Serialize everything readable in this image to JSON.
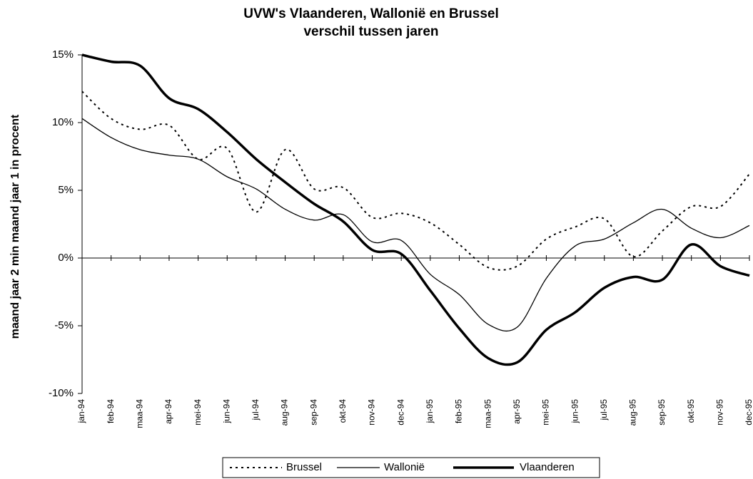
{
  "chart_data": {
    "type": "line",
    "title": "UVW's Vlaanderen, Wallonië en Brussel",
    "subtitle": "verschil tussen jaren",
    "y_label": "maand jaar 2 min maand jaar 1 in procent",
    "categories": [
      "jan-94",
      "feb-94",
      "maa-94",
      "apr-94",
      "mei-94",
      "jun-94",
      "jul-94",
      "aug-94",
      "sep-94",
      "okt-94",
      "nov-94",
      "dec-94",
      "jan-95",
      "feb-95",
      "maa-95",
      "apr-95",
      "mei-95",
      "jun-95",
      "jul-95",
      "aug-95",
      "sep-95",
      "okt-95",
      "nov-95",
      "dec-95"
    ],
    "series": [
      {
        "name": "Brussel",
        "color": "#000000",
        "line_style": "dotted",
        "line_width": 2,
        "values": [
          12.3,
          10.3,
          9.5,
          9.8,
          7.3,
          8.1,
          3.4,
          8.0,
          5.1,
          5.2,
          3.0,
          3.3,
          2.6,
          1.0,
          -0.7,
          -0.6,
          1.4,
          2.3,
          2.9,
          0.1,
          2.0,
          3.8,
          3.8,
          6.2
        ]
      },
      {
        "name": "Wallonië",
        "color": "#000000",
        "line_style": "solid",
        "line_width": 1.3,
        "values": [
          10.3,
          8.9,
          8.0,
          7.6,
          7.3,
          6.0,
          5.1,
          3.6,
          2.8,
          3.2,
          1.2,
          1.3,
          -1.2,
          -2.7,
          -4.9,
          -5.1,
          -1.5,
          0.9,
          1.4,
          2.6,
          3.6,
          2.2,
          1.5,
          2.4
        ]
      },
      {
        "name": "Vlaanderen",
        "color": "#000000",
        "line_style": "solid",
        "line_width": 3.5,
        "values": [
          15.0,
          14.5,
          14.2,
          11.8,
          11.0,
          9.3,
          7.3,
          5.6,
          4.0,
          2.7,
          0.6,
          0.3,
          -2.4,
          -5.2,
          -7.4,
          -7.7,
          -5.3,
          -4.0,
          -2.2,
          -1.4,
          -1.6,
          1.0,
          -0.6,
          -1.3
        ]
      }
    ],
    "ylim": [
      -10,
      15
    ],
    "yticks": [
      {
        "value": -10,
        "label": "-10%"
      },
      {
        "value": -5,
        "label": "-5%"
      },
      {
        "value": 0,
        "label": "0%"
      },
      {
        "value": 5,
        "label": "5%"
      },
      {
        "value": 10,
        "label": "10%"
      },
      {
        "value": 15,
        "label": "15%"
      }
    ],
    "legend": "bottom"
  }
}
